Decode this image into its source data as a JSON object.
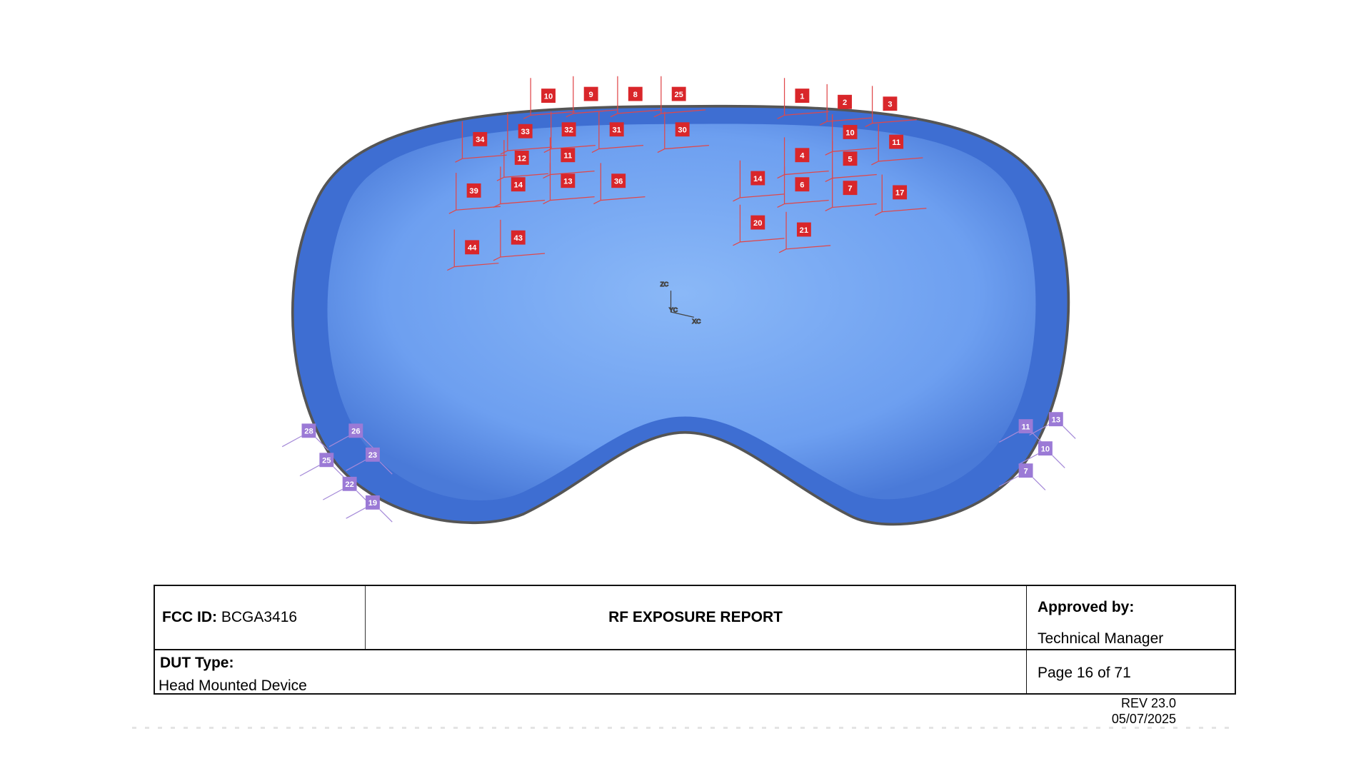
{
  "figure": {
    "axis_labels": [
      "ZC",
      "YC",
      "XC"
    ],
    "red_markers": [
      "10",
      "9",
      "8",
      "25",
      "1",
      "2",
      "3",
      "34",
      "33",
      "32",
      "31",
      "30",
      "10",
      "11",
      "12",
      "11",
      "4",
      "5",
      "39",
      "14",
      "13",
      "36",
      "14",
      "6",
      "7",
      "17",
      "44",
      "43",
      "20",
      "21"
    ],
    "purple_markers": [
      "28",
      "26",
      "25",
      "23",
      "22",
      "19",
      "11",
      "13",
      "10",
      "7"
    ],
    "colors": {
      "lens": "#6fa3f0",
      "frame": "#3f6fd0",
      "red_marker": "#d9262a",
      "purple_marker": "#9b7ad6"
    }
  },
  "footer": {
    "fcc_label": "FCC ID:",
    "fcc_value": "BCGA3416",
    "report_title": "RF EXPOSURE REPORT",
    "approved_label": "Approved by:",
    "approved_value": "Technical Manager",
    "dut_label": "DUT Type:",
    "dut_value": "Head Mounted Device",
    "page": "Page 16 of 71",
    "rev": "REV 23.0",
    "date": "05/07/2025"
  }
}
